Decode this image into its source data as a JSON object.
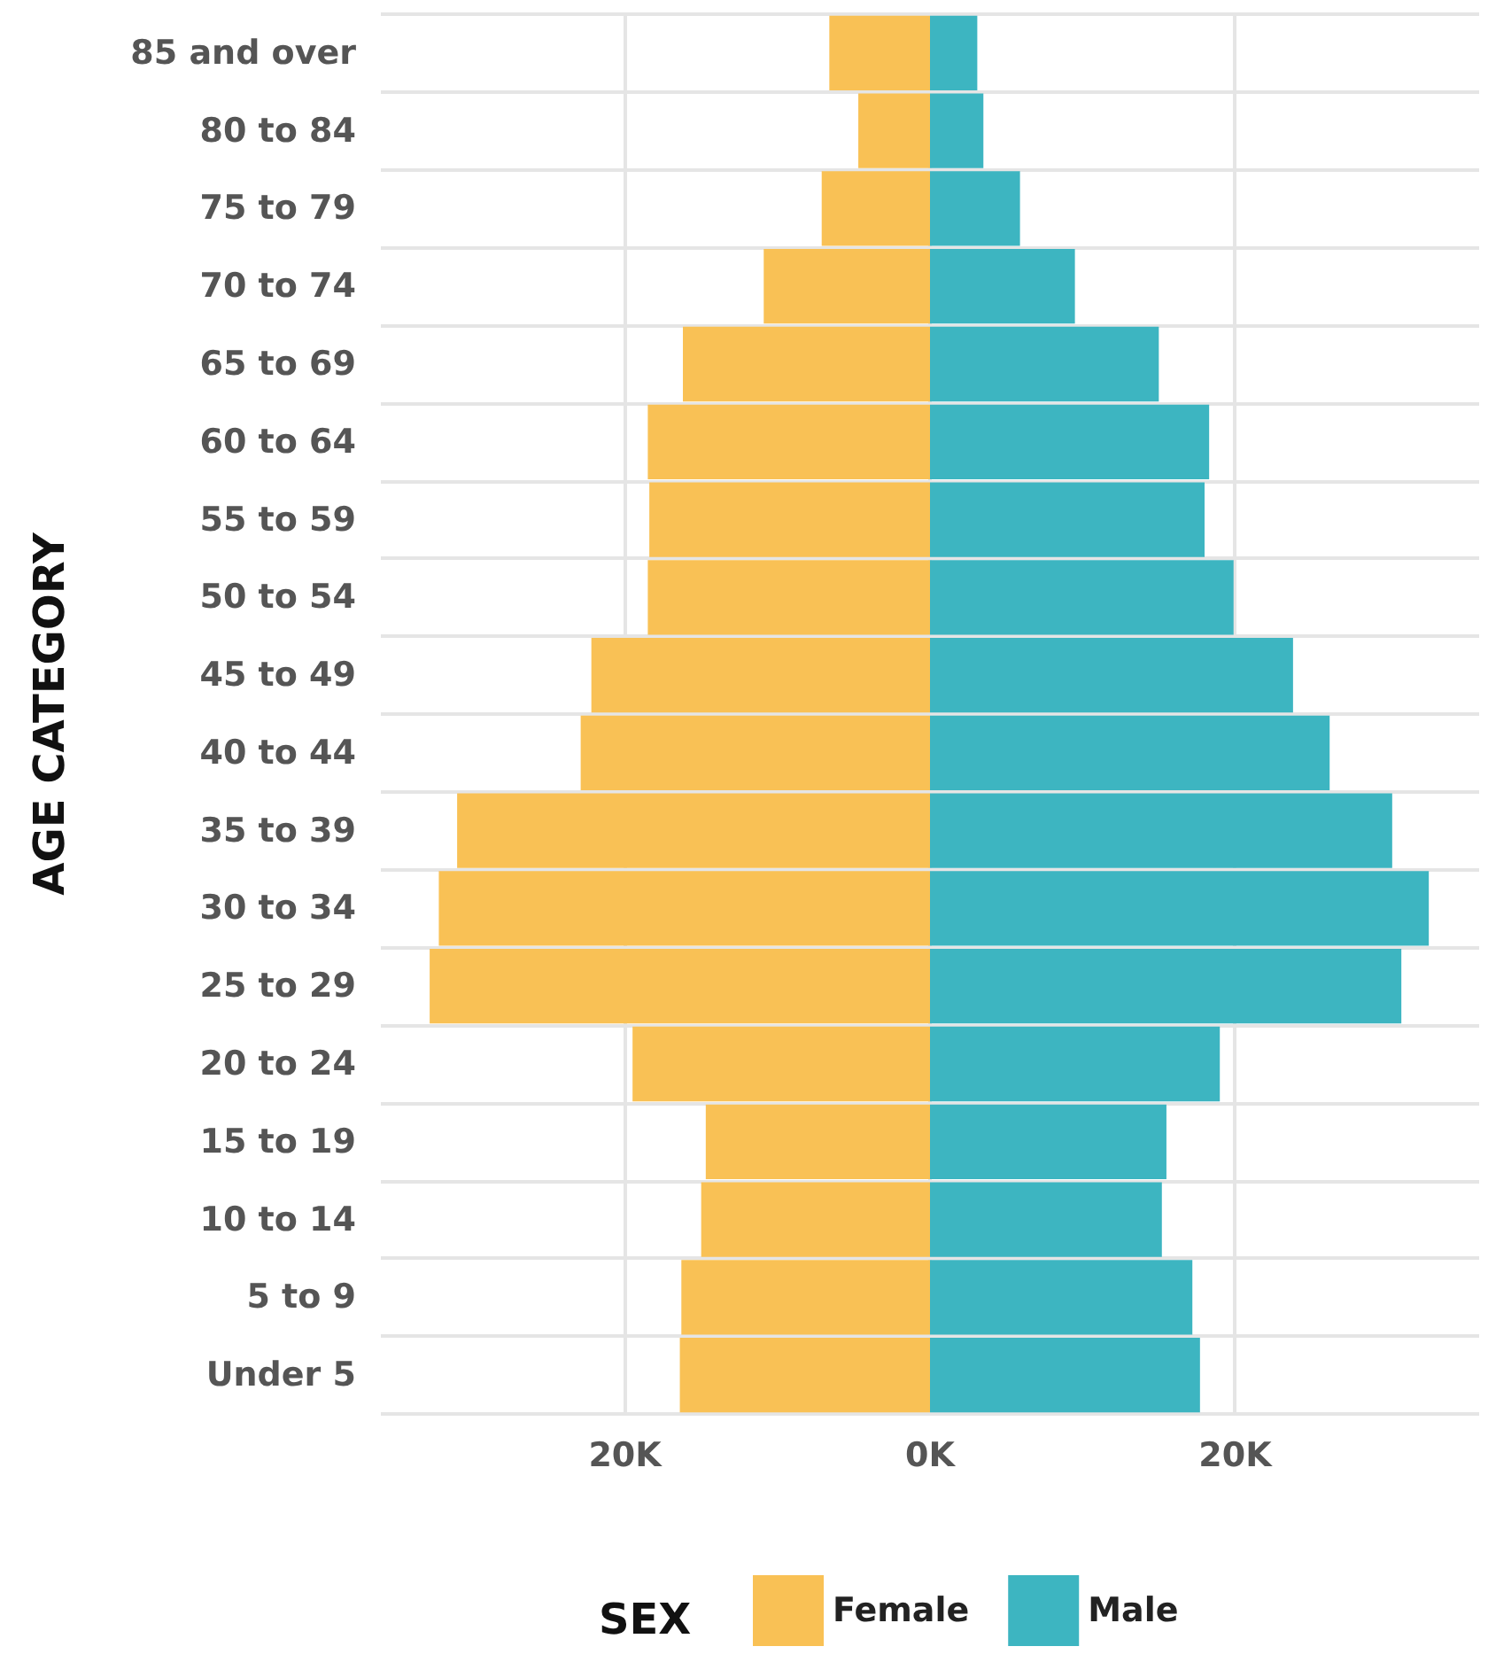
{
  "chart_data": {
    "type": "bar",
    "orientation": "horizontal",
    "stacked": true,
    "ylabel": "AGE CATEGORY",
    "legend_title": "SEX",
    "legend": "bottom",
    "grid": true,
    "categories": [
      "85 and over",
      "80 to 84",
      "75 to 79",
      "70 to 74",
      "65 to 69",
      "60 to 64",
      "55 to 59",
      "50 to 54",
      "45 to 49",
      "40 to 44",
      "35 to 39",
      "30 to 34",
      "25 to 29",
      "20 to 24",
      "15 to 19",
      "10 to 14",
      "5 to 9",
      "Under 5"
    ],
    "series": [
      {
        "name": "Female",
        "color": "#f9c155",
        "values": [
          -6600,
          -4700,
          -7100,
          -10900,
          -16200,
          -18500,
          -18400,
          -18500,
          -22200,
          -22900,
          -31000,
          -32200,
          -32800,
          -19500,
          -14700,
          -15000,
          -16300,
          -16400
        ]
      },
      {
        "name": "Male",
        "color": "#3db5c1",
        "values": [
          3100,
          3500,
          5900,
          9500,
          15000,
          18300,
          18000,
          19900,
          23800,
          26200,
          30300,
          32700,
          30900,
          19000,
          15500,
          15200,
          17200,
          17700
        ]
      }
    ],
    "xlim": [
      -36000,
      36000
    ],
    "xticks": [
      {
        "value": -20000,
        "label": "20K"
      },
      {
        "value": 0,
        "label": "0K"
      },
      {
        "value": 20000,
        "label": "20K"
      }
    ]
  }
}
